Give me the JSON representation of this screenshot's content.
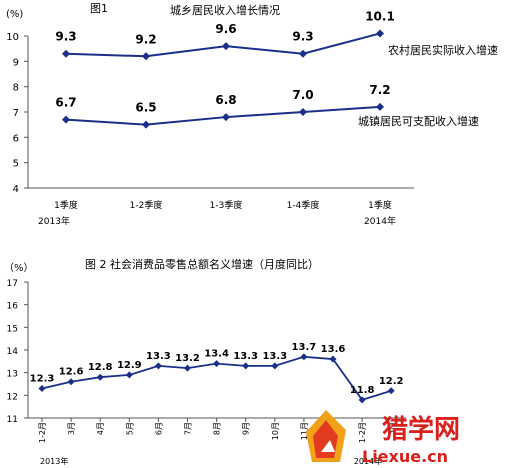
{
  "chart_data": [
    {
      "type": "line",
      "figure_label": "图1",
      "title": "城乡居民收入增长情况",
      "ylabel": "(%)",
      "ylim": [
        4,
        10
      ],
      "yticks": [
        "4",
        "5",
        "6",
        "7",
        "8",
        "9",
        "10"
      ],
      "categories": [
        "1季度",
        "1-2季度",
        "1-3季度",
        "1-4季度",
        "1季度"
      ],
      "year_labels": [
        "2013年",
        "2014年"
      ],
      "grid": false,
      "color": "#1a2f8a",
      "series": [
        {
          "name": "农村居民实际收入增速",
          "values": [
            9.3,
            9.2,
            9.6,
            9.3,
            10.1
          ],
          "labels": [
            "9.3",
            "9.2",
            "9.6",
            "9.3",
            "10.1"
          ]
        },
        {
          "name": "城镇居民可支配收入增速",
          "values": [
            6.7,
            6.5,
            6.8,
            7.0,
            7.2
          ],
          "labels": [
            "6.7",
            "6.5",
            "6.8",
            "7.0",
            "7.2"
          ]
        }
      ]
    },
    {
      "type": "line",
      "title": "图 2  社会消费品零售总额名义增速（月度同比）",
      "ylabel": "（%）",
      "ylim": [
        11,
        17
      ],
      "yticks": [
        "11",
        "12",
        "13",
        "14",
        "15",
        "16",
        "17"
      ],
      "categories": [
        "1-2月",
        "3月",
        "4月",
        "5月",
        "6月",
        "7月",
        "8月",
        "9月",
        "10月",
        "11月",
        "12月",
        "1-2月",
        "3月"
      ],
      "year_labels": [
        "2013年",
        "2014年"
      ],
      "grid": false,
      "color": "#1a2f8a",
      "series": [
        {
          "values": [
            12.3,
            12.6,
            12.8,
            12.9,
            13.3,
            13.2,
            13.4,
            13.3,
            13.3,
            13.7,
            13.6,
            11.8,
            12.2
          ],
          "labels": [
            "12.3",
            "12.6",
            "12.8",
            "12.9",
            "13.3",
            "13.2",
            "13.4",
            "13.3",
            "13.3",
            "13.7",
            "13.6",
            "11.8",
            "12.2"
          ]
        }
      ]
    }
  ],
  "watermark": {
    "logo_text": "猎学网",
    "url_text": "Liexue.cn"
  }
}
